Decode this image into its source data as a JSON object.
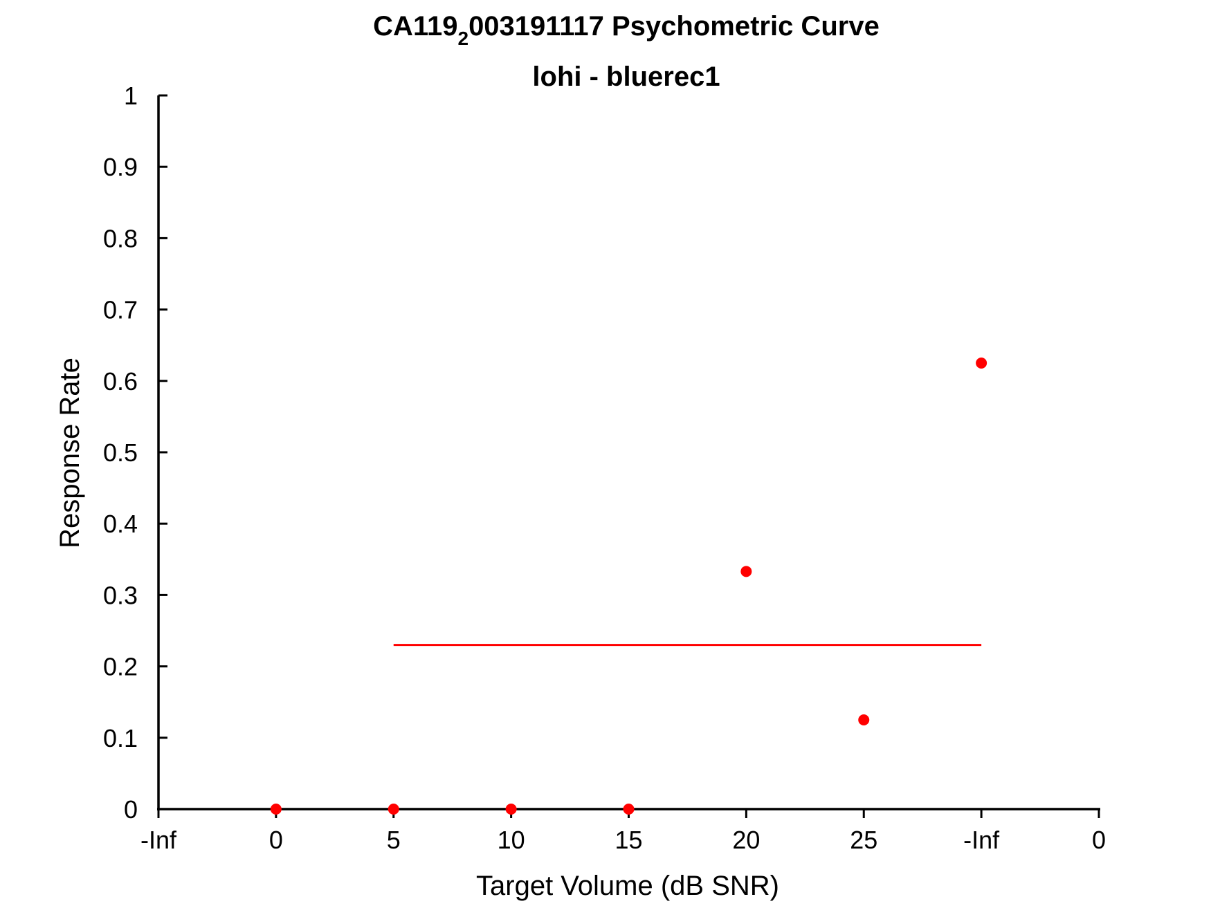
{
  "chart_data": {
    "type": "scatter",
    "title_main": "CA119",
    "title_sub": "2",
    "title_rest": "003191117 Psychometric Curve",
    "subtitle": "lohi - bluerec1",
    "xlabel": "Target Volume (dB SNR)",
    "ylabel": "Response Rate",
    "x_tick_labels": [
      "-Inf",
      "0",
      "5",
      "10",
      "15",
      "20",
      "25",
      "-Inf",
      "0"
    ],
    "y_tick_labels": [
      "0",
      "0.1",
      "0.2",
      "0.3",
      "0.4",
      "0.5",
      "0.6",
      "0.7",
      "0.8",
      "0.9",
      "1"
    ],
    "ylim": [
      0,
      1
    ],
    "grid": false,
    "legend": "none",
    "points": [
      {
        "x": "0",
        "y": 0
      },
      {
        "x": "5",
        "y": 0
      },
      {
        "x": "10",
        "y": 0
      },
      {
        "x": "15",
        "y": 0
      },
      {
        "x": "20",
        "y": 0.333
      },
      {
        "x": "25",
        "y": 0.125
      },
      {
        "x": "-Inf",
        "y": 0.625
      }
    ],
    "reference_line": {
      "x_from": "5",
      "x_to": "-Inf",
      "y": 0.23
    },
    "colors": {
      "points": "#ff0000",
      "line": "#ff0000",
      "axes": "#000000"
    }
  }
}
